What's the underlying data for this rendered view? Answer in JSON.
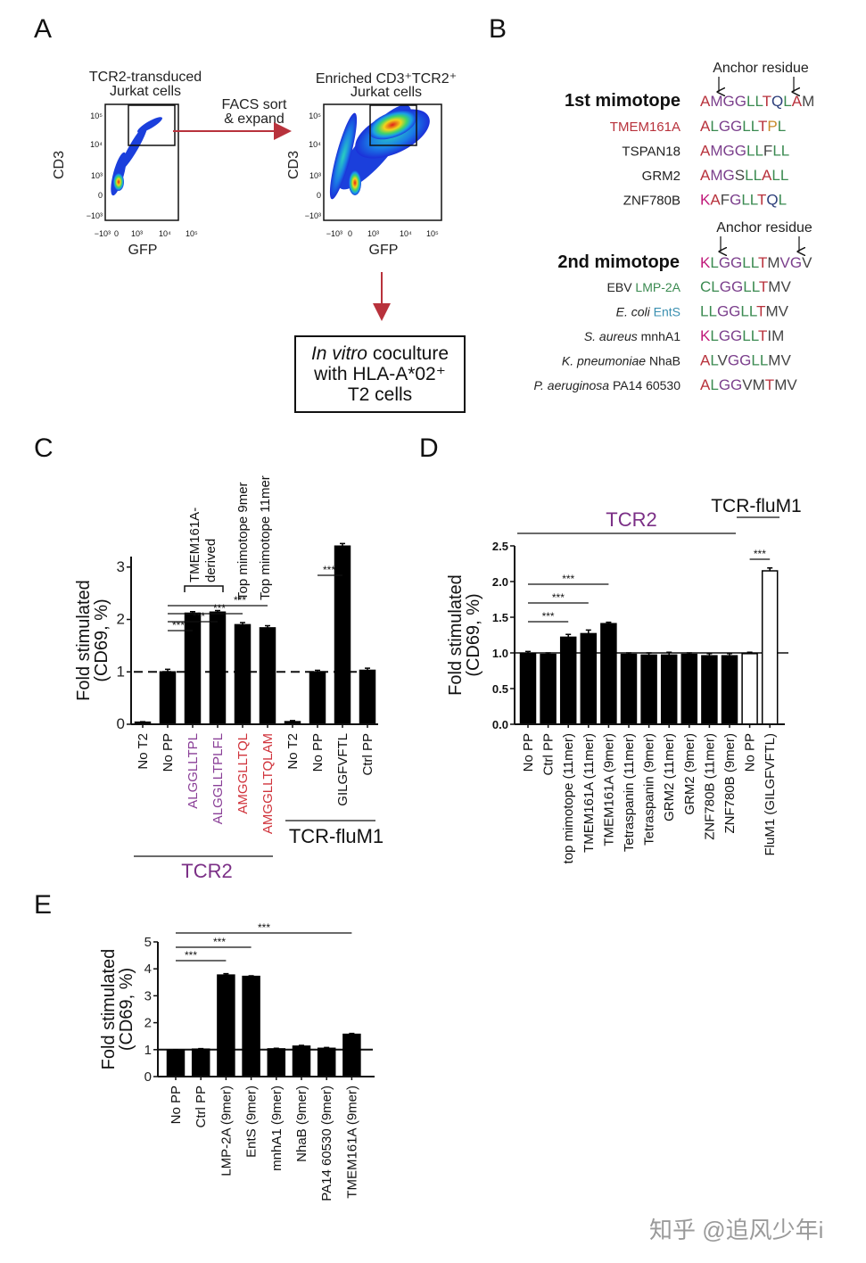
{
  "panel_labels": {
    "a": "A",
    "b": "B",
    "c": "C",
    "d": "D",
    "e": "E"
  },
  "panel_a": {
    "left_title_1": "TCR2-transduced",
    "left_title_2": "Jurkat cells",
    "right_title_1": "Enriched CD3⁺TCR2⁺",
    "right_title_2": "Jurkat cells",
    "arrow_label_1": "FACS sort",
    "arrow_label_2": "& expand",
    "x_axis_label": "GFP",
    "y_axis_label": "CD3",
    "x_ticks": [
      "−10³",
      "0",
      "10³",
      "10⁴",
      "10⁵"
    ],
    "y_ticks": [
      "10⁵",
      "10⁴",
      "10³",
      "0",
      "−10³"
    ],
    "box_line1_italic": "In vitro",
    "box_line1_rest": " coculture",
    "box_line2": "with HLA-A*02⁺",
    "box_line3": "T2 cells",
    "arrow_color": "#b8323c"
  },
  "panel_b": {
    "anchor_label": "Anchor residue",
    "color_key": {
      "r": "#b8323c",
      "p": "#7b3f8c",
      "g": "#3a8a50",
      "b": "#2c3e7a",
      "k": "#444444",
      "m": "#c0197a",
      "o": "#c88a2a"
    },
    "group1": {
      "title": "1st mimotope",
      "title_seq": "AMGGLLTQLAM",
      "title_colors": "rpppggrbgrk",
      "rows": [
        {
          "name": "TMEM161A",
          "name_color": "#b8323c",
          "seq": "ALGGLLTPL",
          "colors": "rgppggrog"
        },
        {
          "name": "TSPAN18",
          "name_color": "#222222",
          "seq": "AMGGLLFLL",
          "colors": "rpppggkgg"
        },
        {
          "name": "GRM2",
          "name_color": "#222222",
          "seq": "AMGSLLALL",
          "colors": "rppkggrgg"
        },
        {
          "name": "ZNF780B",
          "name_color": "#222222",
          "seq": "KAFGLLTQL",
          "colors": "mrkpggrbg"
        }
      ]
    },
    "group2": {
      "title": "2nd mimotope",
      "title_seq": "KLGGLLTMVGV",
      "title_colors": "mgppggrkppk",
      "rows": [
        {
          "species": "EBV",
          "species_italic": false,
          "gene": "LMP-2A",
          "gene_color": "#3a8a50",
          "seq": "CLGGLLTMV",
          "colors": "ggppggrkk"
        },
        {
          "species": "E. coli",
          "species_italic": true,
          "gene": "EntS",
          "gene_color": "#3a8fb0",
          "seq": "LLGGLLTMV",
          "colors": "ggppggrkk"
        },
        {
          "species": "S. aureus",
          "species_italic": true,
          "gene": "mnhA1",
          "gene_color": "#222222",
          "seq": "KLGGLLTIM",
          "colors": "mgppggrkk"
        },
        {
          "species": "K. pneumoniae",
          "species_italic": true,
          "gene": "NhaB",
          "gene_color": "#222222",
          "seq": "ALVGGLLMV",
          "colors": "rgkppggkk"
        },
        {
          "species": "P. aeruginosa",
          "species_italic": true,
          "gene": "PA14 60530",
          "gene_color": "#222222",
          "seq": "ALGGVMTMV",
          "colors": "rgppkkrkk"
        }
      ]
    }
  },
  "chart_data": [
    {
      "panel": "C",
      "type": "bar",
      "ylabel_1": "Fold stimulated",
      "ylabel_2": "(CD69, %)",
      "ylim": [
        0,
        3.2
      ],
      "yticks": [
        "0",
        "1",
        "2",
        "3"
      ],
      "reference_line": 1,
      "categories": [
        "No T2",
        "No PP",
        "ALGGLLTPL",
        "ALGGLLTPLFL",
        "AMGGLLTQL",
        "AMGGLLTQLAM",
        "No T2",
        "No PP",
        "GILGFVFTL",
        "Ctrl PP"
      ],
      "category_colors": [
        "#111111",
        "#111111",
        "#8a3f97",
        "#8a3f97",
        "#d0343c",
        "#d0343c",
        "#111111",
        "#111111",
        "#111111",
        "#111111"
      ],
      "values": [
        0.04,
        1.0,
        2.12,
        2.14,
        1.9,
        1.84,
        0.05,
        1.0,
        3.4,
        1.03
      ],
      "errors": [
        0.01,
        0.05,
        0.03,
        0.03,
        0.04,
        0.04,
        0.02,
        0.03,
        0.05,
        0.04
      ],
      "bar_fill": [
        "#000",
        "#000",
        "#000",
        "#000",
        "#000",
        "#000",
        "#000",
        "#000",
        "#000",
        "#000"
      ],
      "significance": [
        {
          "from": 1,
          "to": 2,
          "label": "***"
        },
        {
          "from": 1,
          "to": 3,
          "label": "***"
        },
        {
          "from": 1,
          "to": 4,
          "label": "***"
        },
        {
          "from": 1,
          "to": 5,
          "label": "***"
        },
        {
          "from": 7,
          "to": 8,
          "label": "***"
        }
      ],
      "annotations": {
        "bracket_label_1": "TMEM161A-",
        "bracket_label_2": "derived",
        "top9": "Top mimotope 9mer",
        "top11": "Top mimotope 11mer"
      },
      "groups": [
        {
          "label": "TCR2",
          "color": "#7b2f86"
        },
        {
          "label": "TCR-fluM1",
          "color": "#111111"
        }
      ]
    },
    {
      "panel": "D",
      "type": "bar",
      "ylabel_1": "Fold stimulated",
      "ylabel_2": "(CD69, %)",
      "ylim": [
        0,
        2.5
      ],
      "yticks": [
        "0.0",
        "0.5",
        "1.0",
        "1.5",
        "2.0",
        "2.5"
      ],
      "reference_line": 1,
      "categories": [
        "No PP",
        "Ctrl PP",
        "top mimotope (11mer)",
        "TMEM161A (11mer)",
        "TMEM161A (9mer)",
        "Tetraspanin (11mer)",
        "Tetraspanin (9mer)",
        "GRM2 (11mer)",
        "GRM2 (9mer)",
        "ZNF780B (11mer)",
        "ZNF780B (9mer)",
        "No PP",
        "FluM1 (GILGFVFTL)"
      ],
      "values": [
        0.99,
        0.98,
        1.22,
        1.27,
        1.41,
        0.98,
        0.97,
        0.97,
        0.98,
        0.96,
        0.96,
        0.99,
        2.15
      ],
      "errors": [
        0.03,
        0.02,
        0.04,
        0.05,
        0.02,
        0.02,
        0.03,
        0.04,
        0.02,
        0.03,
        0.03,
        0.02,
        0.04
      ],
      "bar_fill": [
        "#000",
        "#000",
        "#000",
        "#000",
        "#000",
        "#000",
        "#000",
        "#000",
        "#000",
        "#000",
        "#000",
        "#fff",
        "#fff"
      ],
      "significance": [
        {
          "from": 0,
          "to": 2,
          "label": "***"
        },
        {
          "from": 0,
          "to": 3,
          "label": "***"
        },
        {
          "from": 0,
          "to": 4,
          "label": "***"
        },
        {
          "from": 11,
          "to": 12,
          "label": "***"
        }
      ],
      "groups": [
        {
          "label": "TCR2",
          "color": "#7b2f86"
        },
        {
          "label": "TCR-fluM1",
          "color": "#111111"
        }
      ]
    },
    {
      "panel": "E",
      "type": "bar",
      "ylabel_1": "Fold stimulated",
      "ylabel_2": "(CD69, %)",
      "ylim": [
        0,
        5
      ],
      "yticks": [
        "0",
        "1",
        "2",
        "3",
        "4",
        "5"
      ],
      "reference_line": 1,
      "categories": [
        "No PP",
        "Ctrl PP",
        "LMP-2A (9mer)",
        "EntS (9mer)",
        "mnhA1 (9mer)",
        "NhaB (9mer)",
        "PA14 60530 (9mer)",
        "TMEM161A (9mer)"
      ],
      "values": [
        0.98,
        1.02,
        3.77,
        3.72,
        1.03,
        1.13,
        1.05,
        1.57
      ],
      "errors": [
        0.02,
        0.02,
        0.05,
        0.02,
        0.02,
        0.03,
        0.03,
        0.03
      ],
      "bar_fill": [
        "#000",
        "#000",
        "#000",
        "#000",
        "#000",
        "#000",
        "#000",
        "#000"
      ],
      "significance": [
        {
          "from": 0,
          "to": 2,
          "label": "***"
        },
        {
          "from": 0,
          "to": 3,
          "label": "***"
        },
        {
          "from": 0,
          "to": 7,
          "label": "***"
        }
      ]
    }
  ],
  "watermark": "知乎 @追风少年i"
}
